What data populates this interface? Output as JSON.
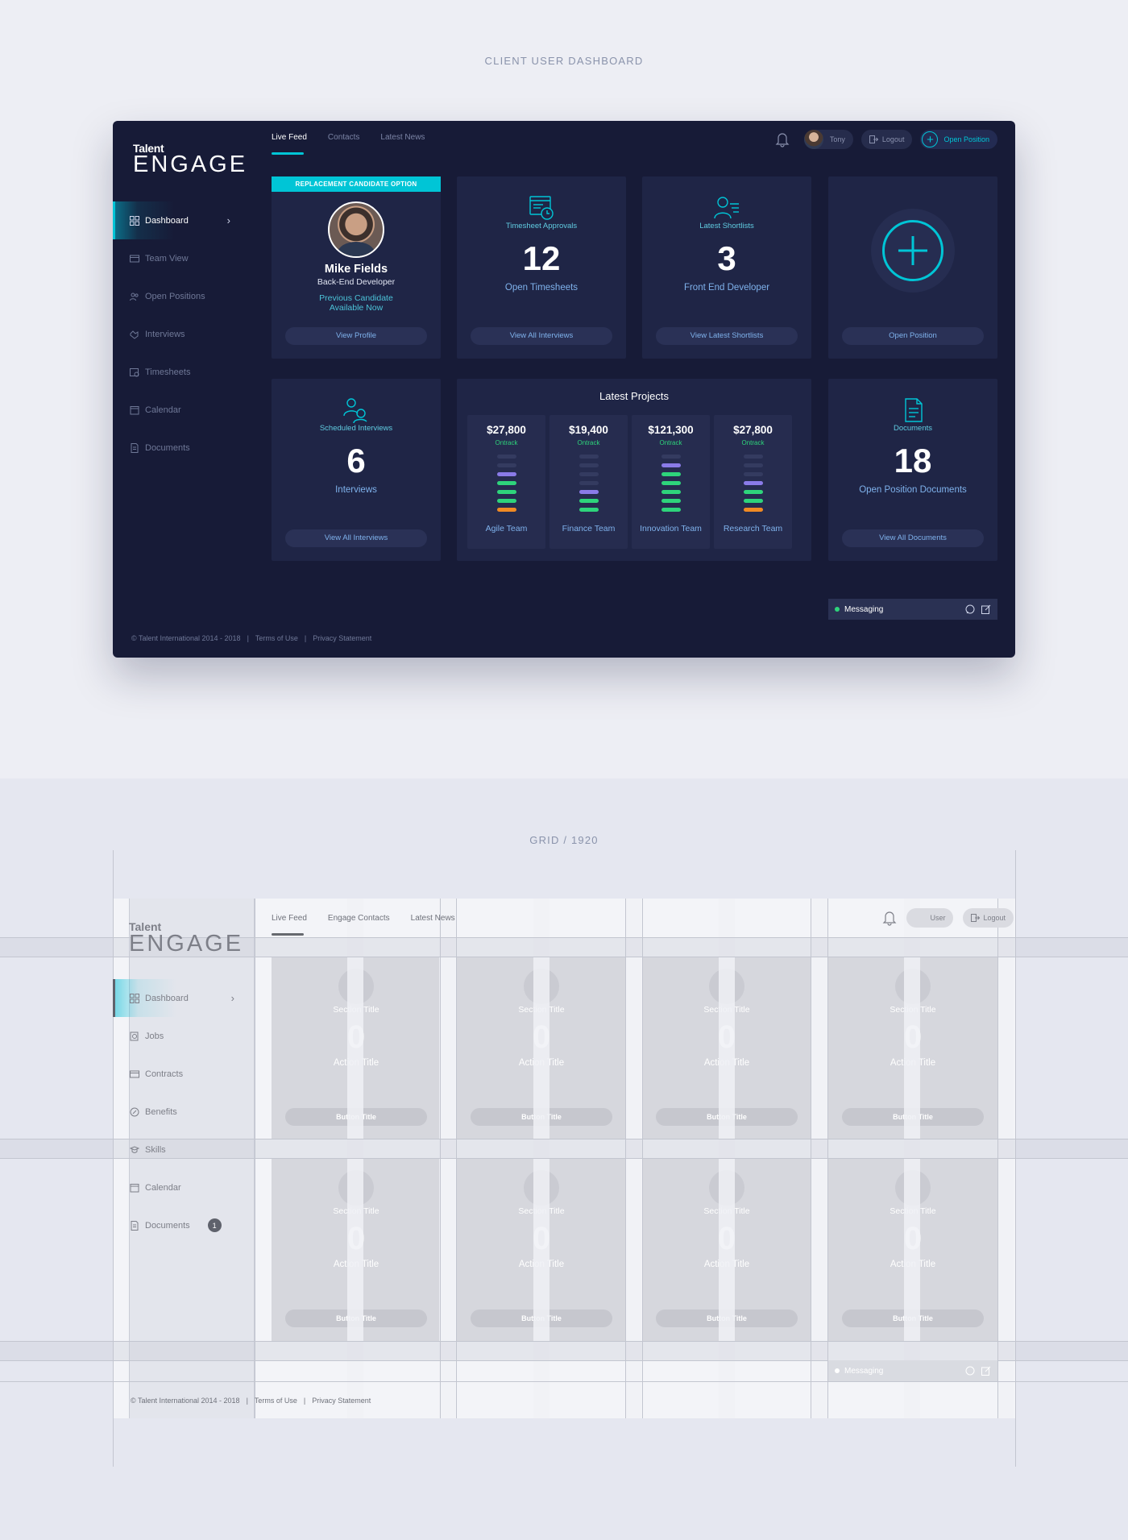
{
  "sections": {
    "dashboard_title": "CLIENT USER DASHBOARD",
    "grid_title": "GRID  /  1920"
  },
  "logo": {
    "line1": "Talent",
    "line2": "ENGAGE"
  },
  "sidebar": {
    "items": [
      {
        "label": "Dashboard",
        "icon": "grid-icon"
      },
      {
        "label": "Team View",
        "icon": "team-icon"
      },
      {
        "label": "Open Positions",
        "icon": "users-icon"
      },
      {
        "label": "Interviews",
        "icon": "handshake-icon"
      },
      {
        "label": "Timesheets",
        "icon": "timesheet-icon"
      },
      {
        "label": "Calendar",
        "icon": "calendar-icon"
      },
      {
        "label": "Documents",
        "icon": "document-icon"
      }
    ],
    "chevron": "›"
  },
  "tabs": [
    "Live Feed",
    "Contacts",
    "Latest News"
  ],
  "header": {
    "user_name": "Tony",
    "logout_label": "Logout",
    "open_position_label": "Open Position",
    "plus": "+"
  },
  "candidate": {
    "banner": "REPLACEMENT CANDIDATE OPTION",
    "name": "Mike Fields",
    "role": "Back-End Developer",
    "status_line1": "Previous Candidate",
    "status_line2": "Available Now",
    "button": "View Profile"
  },
  "timesheets": {
    "title": "Timesheet Approvals",
    "count": "12",
    "subtitle": "Open Timesheets",
    "button": "View All Interviews"
  },
  "shortlists": {
    "title": "Latest Shortlists",
    "count": "3",
    "subtitle": "Front End Developer",
    "button": "View Latest Shortlists"
  },
  "open_position": {
    "button": "Open Position"
  },
  "interviews": {
    "title": "Scheduled Interviews",
    "count": "6",
    "subtitle": "Interviews",
    "button": "View All Interviews"
  },
  "projects": {
    "title": "Latest Projects",
    "items": [
      {
        "amount": "$27,800",
        "status": "Ontrack",
        "team": "Agile Team",
        "bars": [
          "empty",
          "empty",
          "purple",
          "green",
          "green",
          "green",
          "orange"
        ]
      },
      {
        "amount": "$19,400",
        "status": "Ontrack",
        "team": "Finance Team",
        "bars": [
          "empty",
          "empty",
          "empty",
          "empty",
          "purple",
          "green",
          "green"
        ]
      },
      {
        "amount": "$121,300",
        "status": "Ontrack",
        "team": "Innovation Team",
        "bars": [
          "empty",
          "purple",
          "green",
          "green",
          "green",
          "green",
          "green"
        ]
      },
      {
        "amount": "$27,800",
        "status": "Ontrack",
        "team": "Research Team",
        "bars": [
          "empty",
          "empty",
          "empty",
          "purple",
          "green",
          "green",
          "orange"
        ]
      }
    ]
  },
  "documents": {
    "title": "Documents",
    "count": "18",
    "subtitle": "Open Position Documents",
    "button": "View All Documents"
  },
  "messaging": {
    "label": "Messaging"
  },
  "footer": {
    "copyright": "© Talent International 2014 - 2018",
    "sep": "|",
    "terms": "Terms of Use",
    "privacy": "Privacy Statement"
  },
  "colors": {
    "accent": "#00c5d6",
    "green": "#2ed47b",
    "purple": "#8a7be8",
    "orange": "#f08a24",
    "empty": "#343b60"
  },
  "grid": {
    "tabs": [
      "Live Feed",
      "Engage Contacts",
      "Latest News"
    ],
    "user_label": "User",
    "logout_label": "Logout",
    "sidebar": [
      {
        "label": "Dashboard",
        "icon": "grid-icon"
      },
      {
        "label": "Jobs",
        "icon": "jobs-icon"
      },
      {
        "label": "Contracts",
        "icon": "contracts-icon"
      },
      {
        "label": "Benefits",
        "icon": "benefits-icon"
      },
      {
        "label": "Skills",
        "icon": "skills-icon"
      },
      {
        "label": "Calendar",
        "icon": "calendar-icon"
      },
      {
        "label": "Documents",
        "icon": "document-icon"
      }
    ],
    "documents_badge": "1",
    "card": {
      "section_title": "Section Title",
      "value": "0",
      "action_title": "Action Title",
      "button": "Button Title"
    },
    "messaging": "Messaging",
    "footer": {
      "copyright": "© Talent International 2014 - 2018",
      "terms": "Terms of Use",
      "privacy": "Privacy Statement"
    }
  }
}
